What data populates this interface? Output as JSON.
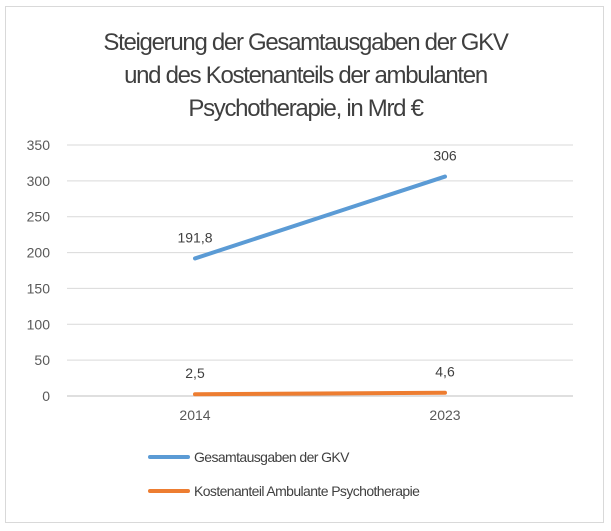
{
  "chart_data": {
    "type": "line",
    "title_lines": [
      "Steigerung der Gesamtausgaben der GKV",
      "und des Kostenanteils der ambulanten",
      "Psychotherapie, in Mrd €"
    ],
    "categories": [
      "2014",
      "2023"
    ],
    "ylim": [
      0,
      350
    ],
    "yticks": [
      "0",
      "50",
      "100",
      "150",
      "200",
      "250",
      "300",
      "350"
    ],
    "grid": true,
    "legend_position": "bottom",
    "series": [
      {
        "name": "Gesamtausgaben der GKV",
        "values": [
          191.8,
          306
        ],
        "labels": [
          "191,8",
          "306"
        ],
        "color": "#5b9bd5"
      },
      {
        "name": "Kostenanteil Ambulante Psychotherapie",
        "values": [
          2.5,
          4.6
        ],
        "labels": [
          "2,5",
          "4,6"
        ],
        "color": "#ed7d31"
      }
    ]
  }
}
